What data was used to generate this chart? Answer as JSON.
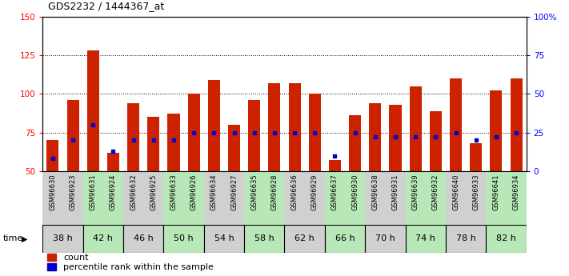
{
  "title": "GDS2232 / 1444367_at",
  "samples": [
    "GSM96630",
    "GSM96923",
    "GSM96631",
    "GSM96924",
    "GSM96632",
    "GSM96925",
    "GSM96633",
    "GSM96926",
    "GSM96634",
    "GSM96927",
    "GSM96635",
    "GSM96928",
    "GSM96636",
    "GSM96929",
    "GSM96637",
    "GSM96930",
    "GSM96638",
    "GSM96931",
    "GSM96639",
    "GSM96932",
    "GSM96640",
    "GSM96933",
    "GSM96641",
    "GSM96934"
  ],
  "time_groups": [
    {
      "label": "38 h",
      "indices": [
        0,
        1
      ],
      "color": "#d0d0d0"
    },
    {
      "label": "42 h",
      "indices": [
        2,
        3
      ],
      "color": "#b8e8b8"
    },
    {
      "label": "46 h",
      "indices": [
        4,
        5
      ],
      "color": "#d0d0d0"
    },
    {
      "label": "50 h",
      "indices": [
        6,
        7
      ],
      "color": "#b8e8b8"
    },
    {
      "label": "54 h",
      "indices": [
        8,
        9
      ],
      "color": "#d0d0d0"
    },
    {
      "label": "58 h",
      "indices": [
        10,
        11
      ],
      "color": "#b8e8b8"
    },
    {
      "label": "62 h",
      "indices": [
        12,
        13
      ],
      "color": "#d0d0d0"
    },
    {
      "label": "66 h",
      "indices": [
        14,
        15
      ],
      "color": "#b8e8b8"
    },
    {
      "label": "70 h",
      "indices": [
        16,
        17
      ],
      "color": "#d0d0d0"
    },
    {
      "label": "74 h",
      "indices": [
        18,
        19
      ],
      "color": "#b8e8b8"
    },
    {
      "label": "78 h",
      "indices": [
        20,
        21
      ],
      "color": "#d0d0d0"
    },
    {
      "label": "82 h",
      "indices": [
        22,
        23
      ],
      "color": "#b8e8b8"
    }
  ],
  "count_values": [
    70,
    96,
    128,
    62,
    94,
    85,
    87,
    100,
    109,
    80,
    96,
    107,
    107,
    100,
    57,
    86,
    94,
    93,
    105,
    89,
    110,
    68,
    102,
    110
  ],
  "percentile_values": [
    8,
    20,
    30,
    13,
    20,
    20,
    20,
    25,
    25,
    25,
    25,
    25,
    25,
    25,
    10,
    25,
    22,
    22,
    22,
    22,
    25,
    20,
    22,
    25
  ],
  "ylim_left": [
    50,
    150
  ],
  "ylim_right": [
    0,
    100
  ],
  "yticks_left": [
    50,
    75,
    100,
    125,
    150
  ],
  "yticks_right": [
    0,
    25,
    50,
    75,
    100
  ],
  "ytick_labels_right": [
    "0",
    "25",
    "50",
    "75",
    "100%"
  ],
  "bar_color": "#cc2200",
  "marker_color": "#0000cc",
  "bar_width": 0.6,
  "legend_count_label": "count",
  "legend_pct_label": "percentile rank within the sample"
}
